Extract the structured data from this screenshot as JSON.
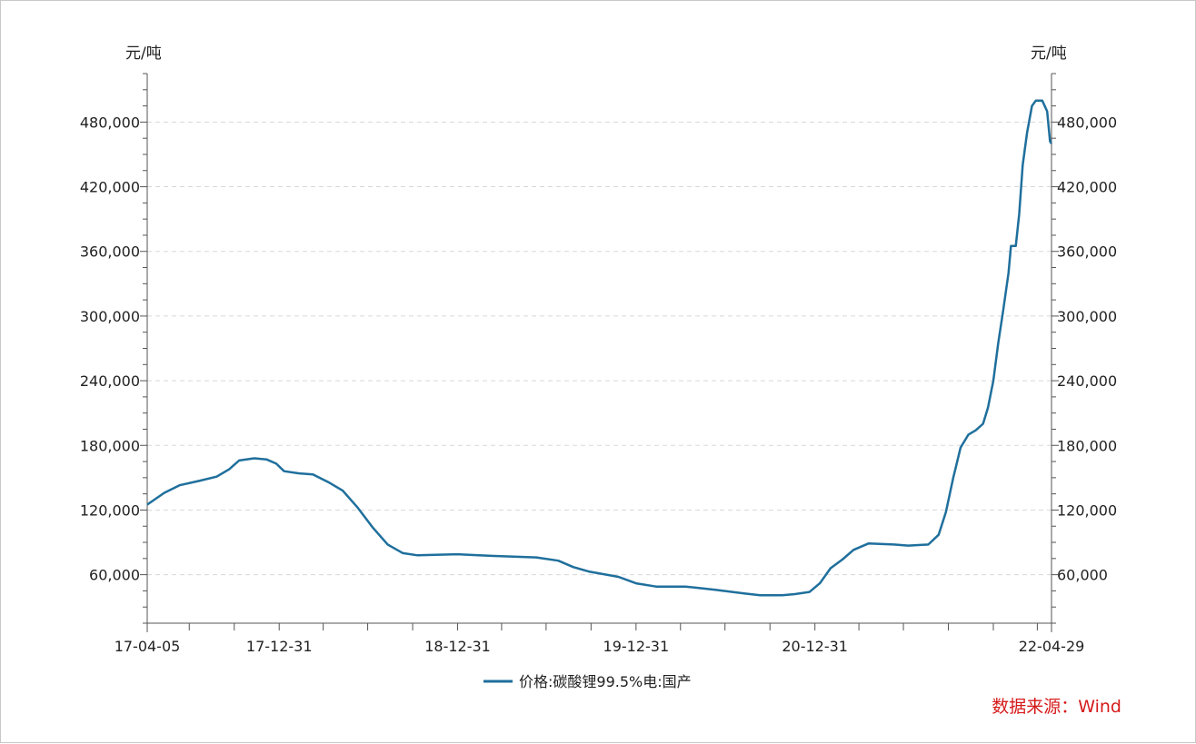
{
  "chart_data": {
    "type": "line",
    "x_start": "17-04-05",
    "x_end": "22-04-29",
    "x_tick_labels": [
      "17-04-05",
      "17-12-31",
      "18-12-31",
      "19-12-31",
      "20-12-31",
      "22-04-29"
    ],
    "y_tick_labels": [
      "60,000",
      "120,000",
      "180,000",
      "240,000",
      "300,000",
      "360,000",
      "420,000",
      "480,000"
    ],
    "y_ticks": [
      60000,
      120000,
      180000,
      240000,
      300000,
      360000,
      420000,
      480000
    ],
    "ylim": [
      15000,
      525000
    ],
    "ylabel_left": "元/吨",
    "ylabel_right": "元/吨",
    "grid": "horizontal dashed",
    "legend_position": "bottom-center",
    "series": [
      {
        "name": "价格:碳酸锂99.5%电:国产",
        "color": "#1f6f9c",
        "points": [
          [
            "2017-04-05",
            125000
          ],
          [
            "2017-05-10",
            136000
          ],
          [
            "2017-06-10",
            143000
          ],
          [
            "2017-07-20",
            147000
          ],
          [
            "2017-08-25",
            151000
          ],
          [
            "2017-09-20",
            158000
          ],
          [
            "2017-10-10",
            166000
          ],
          [
            "2017-11-10",
            168000
          ],
          [
            "2017-12-05",
            167000
          ],
          [
            "2017-12-25",
            163000
          ],
          [
            "2018-01-10",
            156000
          ],
          [
            "2018-02-10",
            154000
          ],
          [
            "2018-03-10",
            153000
          ],
          [
            "2018-04-10",
            146000
          ],
          [
            "2018-05-10",
            138000
          ],
          [
            "2018-06-10",
            122000
          ],
          [
            "2018-07-10",
            104000
          ],
          [
            "2018-08-10",
            88000
          ],
          [
            "2018-09-10",
            80000
          ],
          [
            "2018-10-10",
            78000
          ],
          [
            "2018-12-31",
            79000
          ],
          [
            "2019-03-10",
            77500
          ],
          [
            "2019-06-10",
            76000
          ],
          [
            "2019-07-25",
            73000
          ],
          [
            "2019-08-25",
            67000
          ],
          [
            "2019-09-25",
            63000
          ],
          [
            "2019-10-25",
            60500
          ],
          [
            "2019-11-25",
            58000
          ],
          [
            "2019-12-31",
            52000
          ],
          [
            "2020-02-10",
            49000
          ],
          [
            "2020-04-10",
            49000
          ],
          [
            "2020-06-10",
            46000
          ],
          [
            "2020-08-10",
            42500
          ],
          [
            "2020-09-10",
            41000
          ],
          [
            "2020-10-25",
            41000
          ],
          [
            "2020-11-20",
            42000
          ],
          [
            "2020-12-20",
            44000
          ],
          [
            "2021-01-10",
            52000
          ],
          [
            "2021-02-01",
            66000
          ],
          [
            "2021-02-25",
            74000
          ],
          [
            "2021-03-20",
            83000
          ],
          [
            "2021-04-20",
            89000
          ],
          [
            "2021-06-10",
            88000
          ],
          [
            "2021-07-10",
            87000
          ],
          [
            "2021-08-20",
            88000
          ],
          [
            "2021-09-10",
            97000
          ],
          [
            "2021-09-25",
            118000
          ],
          [
            "2021-10-10",
            150000
          ],
          [
            "2021-10-25",
            178000
          ],
          [
            "2021-11-10",
            190000
          ],
          [
            "2021-11-25",
            194000
          ],
          [
            "2021-12-10",
            200000
          ],
          [
            "2021-12-20",
            215000
          ],
          [
            "2021-12-31",
            240000
          ],
          [
            "2022-01-10",
            275000
          ],
          [
            "2022-01-20",
            305000
          ],
          [
            "2022-01-31",
            340000
          ],
          [
            "2022-02-05",
            365000
          ],
          [
            "2022-02-15",
            365000
          ],
          [
            "2022-02-22",
            395000
          ],
          [
            "2022-03-01",
            440000
          ],
          [
            "2022-03-10",
            470000
          ],
          [
            "2022-03-20",
            495000
          ],
          [
            "2022-03-28",
            500000
          ],
          [
            "2022-04-10",
            500000
          ],
          [
            "2022-04-20",
            490000
          ],
          [
            "2022-04-26",
            462000
          ],
          [
            "2022-04-29",
            460000
          ]
        ]
      }
    ]
  },
  "source": {
    "text": "数据来源：Wind",
    "color": "#d61a1a"
  }
}
